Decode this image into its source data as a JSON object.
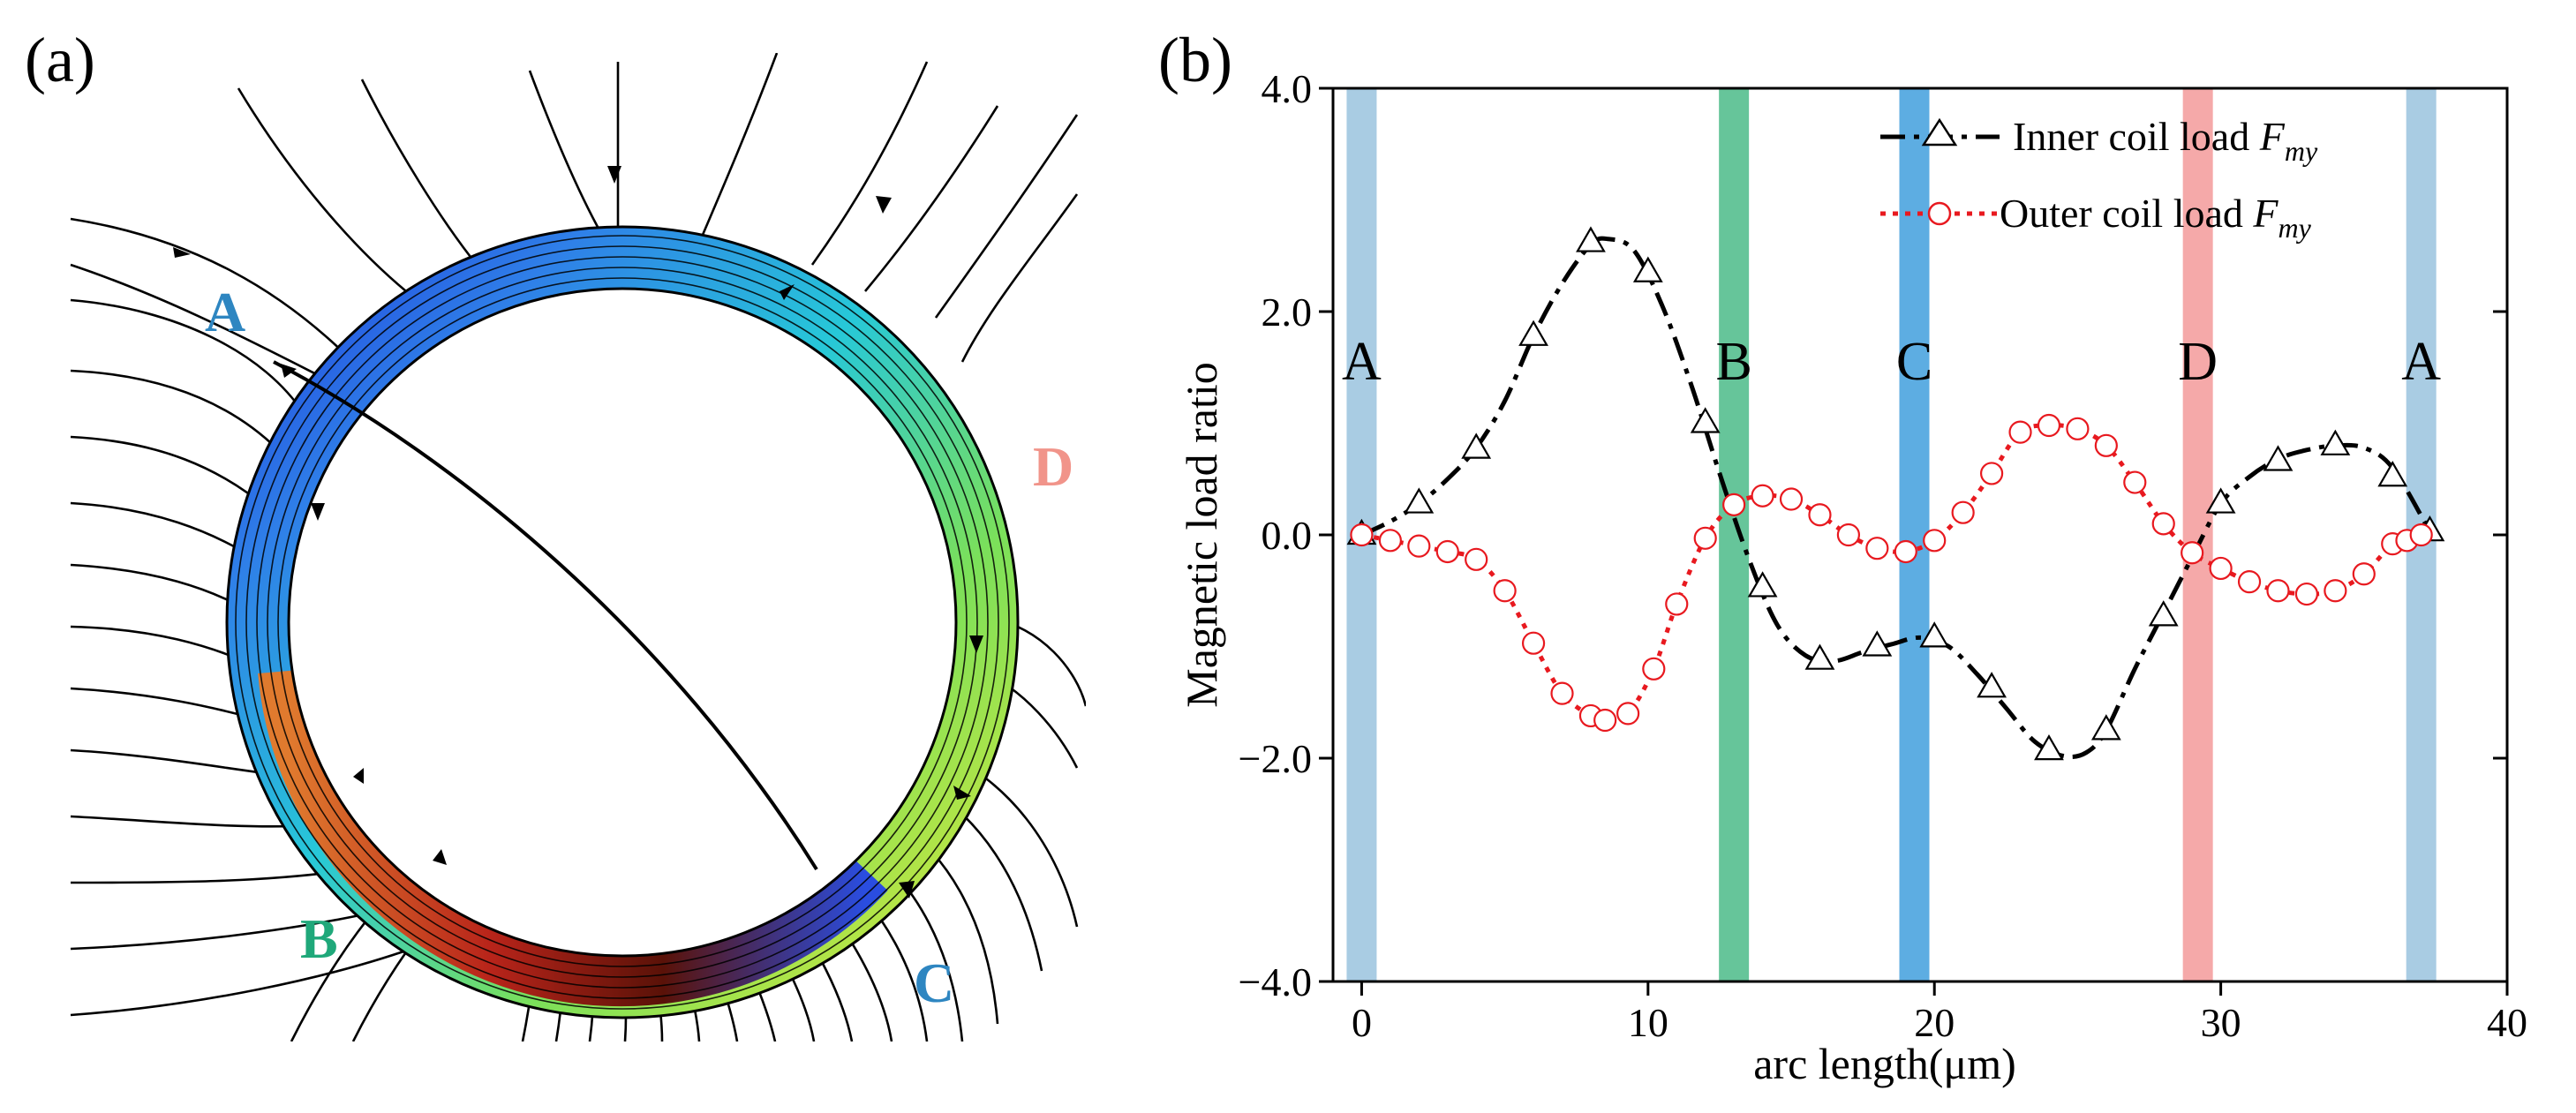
{
  "panel_a": {
    "label": "(a)",
    "points": [
      {
        "name": "A",
        "color": "#2e86c1"
      },
      {
        "name": "B",
        "color": "#1fa87a"
      },
      {
        "name": "C",
        "color": "#2e86c1"
      },
      {
        "name": "D",
        "color": "#f1948a"
      }
    ]
  },
  "panel_b": {
    "label": "(b)"
  },
  "chart_data": {
    "type": "line",
    "xlabel": "arc length(μm)",
    "ylabel": "Magnetic load ratio",
    "xlim": [
      -1,
      40
    ],
    "ylim": [
      -4,
      4
    ],
    "xticks": [
      "0",
      "10",
      "20",
      "30",
      "40"
    ],
    "yticks": [
      "4.0",
      "2.0",
      "0.0",
      "−2.0",
      "−4.0"
    ],
    "xtick_values": [
      0,
      10,
      20,
      30,
      40
    ],
    "ytick_values": [
      4,
      2,
      0,
      -2,
      -4
    ],
    "legend": {
      "position": "top-right",
      "entries": [
        {
          "label": "Inner coil load ",
          "subject": "F",
          "subscript": "my"
        },
        {
          "label": "Outer coil load ",
          "subject": "F",
          "subscript": "my"
        }
      ]
    },
    "bands": [
      {
        "label": "A",
        "x": 0.0,
        "color": "#a9cce3"
      },
      {
        "label": "B",
        "x": 13.0,
        "color": "#66c59a"
      },
      {
        "label": "C",
        "x": 19.3,
        "color": "#5dade2"
      },
      {
        "label": "D",
        "x": 29.2,
        "color": "#f5a9a9"
      },
      {
        "label": "A",
        "x": 37.0,
        "color": "#a9cce3"
      }
    ],
    "series": [
      {
        "name": "Inner coil load Fmy",
        "color": "#000000",
        "marker": "triangle",
        "line": "dash-dot",
        "x": [
          0,
          2,
          4,
          6,
          8,
          10,
          12,
          14,
          16,
          18,
          20,
          22,
          24,
          26,
          28,
          30,
          32,
          34,
          36,
          37.3
        ],
        "y": [
          0.0,
          0.28,
          0.77,
          1.78,
          2.62,
          2.35,
          1.0,
          -0.47,
          -1.12,
          -1.0,
          -0.92,
          -1.37,
          -1.93,
          -1.75,
          -0.73,
          0.28,
          0.66,
          0.8,
          0.52,
          0.03
        ],
        "curve_x": [
          0,
          1,
          2,
          3,
          4,
          5,
          6,
          7,
          8,
          8.6,
          9.5,
          10.5,
          11.5,
          12.5,
          13.5,
          14.5,
          15.5,
          16.5,
          17.5,
          18.5,
          19.5,
          20.5,
          21.5,
          22.5,
          23.5,
          24.5,
          25.3,
          26,
          27,
          28,
          29,
          30,
          31,
          32,
          33,
          34,
          35,
          36,
          37.3
        ],
        "curve_y": [
          0.0,
          0.12,
          0.28,
          0.5,
          0.78,
          1.2,
          1.78,
          2.25,
          2.6,
          2.65,
          2.55,
          2.05,
          1.35,
          0.55,
          -0.2,
          -0.8,
          -1.08,
          -1.13,
          -1.05,
          -0.98,
          -0.92,
          -1.0,
          -1.25,
          -1.55,
          -1.85,
          -1.98,
          -1.95,
          -1.75,
          -1.2,
          -0.7,
          -0.2,
          0.28,
          0.52,
          0.68,
          0.76,
          0.8,
          0.78,
          0.6,
          0.03
        ]
      },
      {
        "name": "Outer coil load Fmy",
        "color": "#e8191f",
        "marker": "circle",
        "line": "dotted",
        "x": [
          0,
          1,
          2,
          3,
          4,
          5,
          6,
          7,
          8,
          8.5,
          9.3,
          10.2,
          11,
          12,
          13,
          14,
          15,
          16,
          17,
          18,
          19,
          20,
          21,
          22,
          23,
          24,
          25,
          26,
          27,
          28,
          29,
          30,
          31,
          32,
          33,
          34,
          35,
          36,
          36.5,
          37
        ],
        "y": [
          0.0,
          -0.05,
          -0.1,
          -0.15,
          -0.22,
          -0.5,
          -0.97,
          -1.42,
          -1.62,
          -1.66,
          -1.6,
          -1.2,
          -0.62,
          -0.03,
          0.27,
          0.35,
          0.32,
          0.18,
          0.0,
          -0.12,
          -0.15,
          -0.05,
          0.2,
          0.55,
          0.92,
          0.98,
          0.95,
          0.8,
          0.47,
          0.1,
          -0.16,
          -0.3,
          -0.42,
          -0.5,
          -0.53,
          -0.5,
          -0.35,
          -0.08,
          -0.05,
          0.0
        ]
      }
    ]
  }
}
